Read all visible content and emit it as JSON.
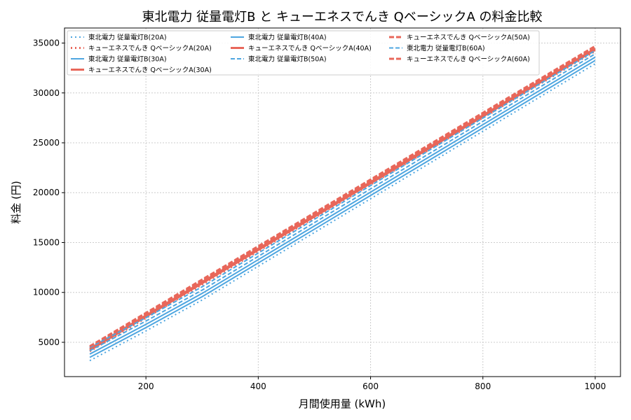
{
  "chart_data": {
    "type": "line",
    "title": "東北電力 従量電灯B と キューエネスでんき QベーシックA の料金比較",
    "xlabel": "月間使用量 (kWh)",
    "ylabel": "料金 (円)",
    "xlim": [
      55,
      1045
    ],
    "ylim": [
      1561,
      36509
    ],
    "xticks": [
      200,
      400,
      600,
      800,
      1000
    ],
    "yticks": [
      5000,
      10000,
      15000,
      20000,
      25000,
      30000,
      35000
    ],
    "grid": true,
    "legend_placement": "top-left",
    "legend_columns": 3,
    "colors": {
      "tohoku": "#4ea6e0",
      "q": "#e8675a"
    },
    "x": [
      100,
      200,
      300,
      400,
      500,
      600,
      700,
      800,
      900,
      1000
    ],
    "series": [
      {
        "name": "東北電力 従量電灯B(20A)",
        "color": "#4ea6e0",
        "style": "dotted",
        "values": [
          3160,
          6140,
          9240,
          12624,
          16008,
          19392,
          22776,
          26160,
          29544,
          32928
        ]
      },
      {
        "name": "キューエネスでんき QベーシックA(20A)",
        "color": "#e8675a",
        "style": "dotted",
        "values": [
          4100,
          7444,
          10788,
          14132,
          17476,
          20820,
          24164,
          27508,
          30852,
          34196
        ]
      },
      {
        "name": "東北電力 従量電灯B(30A)",
        "color": "#4ea6e0",
        "style": "solid",
        "values": [
          3490,
          6470,
          9570,
          12954,
          16338,
          19722,
          23106,
          26490,
          29874,
          33258
        ]
      },
      {
        "name": "キューエネスでんき QベーシックA(30A)",
        "color": "#e8675a",
        "style": "solid",
        "values": [
          4225,
          7569,
          10913,
          14257,
          17601,
          20945,
          24289,
          27633,
          30977,
          34321
        ]
      },
      {
        "name": "東北電力 従量電灯B(40A)",
        "color": "#4ea6e0",
        "style": "solid",
        "values": [
          3820,
          6800,
          9900,
          13284,
          16668,
          20052,
          23436,
          26820,
          30204,
          33588
        ]
      },
      {
        "name": "キューエネスでんき QベーシックA(40A)",
        "color": "#e8675a",
        "style": "solid",
        "values": [
          4350,
          7694,
          11038,
          14382,
          17726,
          21070,
          24414,
          27758,
          31102,
          34446
        ]
      },
      {
        "name": "東北電力 従量電灯B(50A)",
        "color": "#4ea6e0",
        "style": "dashed",
        "values": [
          4150,
          7130,
          10230,
          13614,
          16998,
          20382,
          23766,
          27150,
          30534,
          33918
        ]
      },
      {
        "name": "キューエネスでんき QベーシックA(50A)",
        "color": "#e8675a",
        "style": "dashed",
        "values": [
          4475,
          7819,
          11163,
          14507,
          17851,
          21195,
          24539,
          27883,
          31227,
          34571
        ]
      },
      {
        "name": "東北電力 従量電灯B(60A)",
        "color": "#4ea6e0",
        "style": "dashed",
        "values": [
          4480,
          7460,
          10560,
          13944,
          17328,
          20712,
          24096,
          27480,
          30864,
          34248
        ]
      },
      {
        "name": "キューエネスでんき QベーシックA(60A)",
        "color": "#e8675a",
        "style": "dashed",
        "values": [
          4600,
          7944,
          11288,
          14632,
          17976,
          21320,
          24664,
          28008,
          31352,
          34696
        ]
      }
    ]
  }
}
